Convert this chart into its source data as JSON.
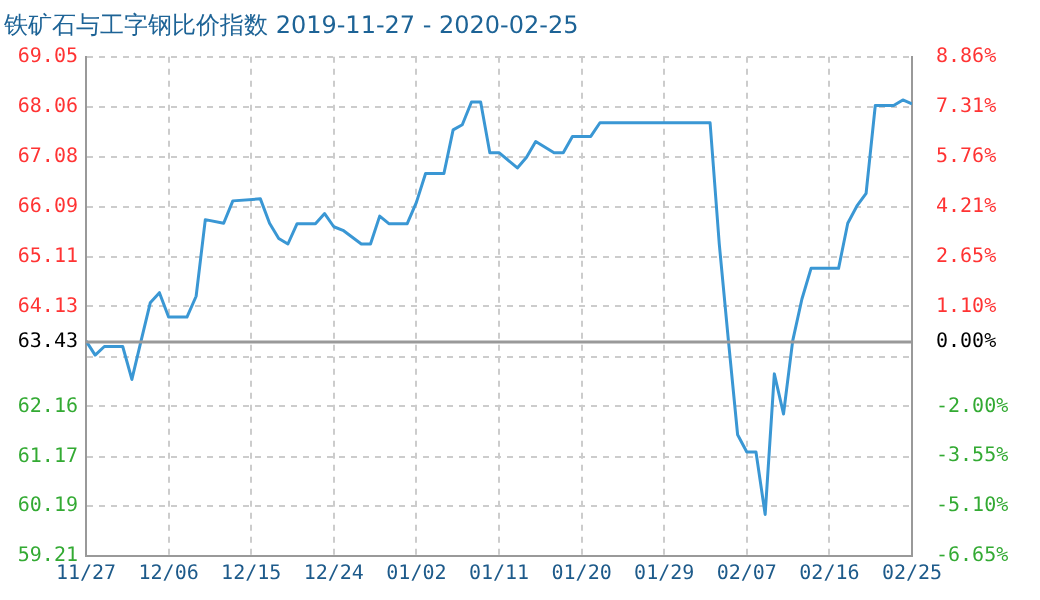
{
  "chart_data": {
    "type": "line",
    "title": "铁矿石与工字钢比价指数 2019-11-27 - 2020-02-25",
    "x": [
      "2019-11-27",
      "2019-11-28",
      "2019-11-29",
      "2019-12-01",
      "2019-12-02",
      "2019-12-03",
      "2019-12-04",
      "2019-12-05",
      "2019-12-06",
      "2019-12-08",
      "2019-12-09",
      "2019-12-10",
      "2019-12-12",
      "2019-12-13",
      "2019-12-16",
      "2019-12-17",
      "2019-12-18",
      "2019-12-19",
      "2019-12-20",
      "2019-12-22",
      "2019-12-23",
      "2019-12-24",
      "2019-12-25",
      "2019-12-27",
      "2019-12-28",
      "2019-12-29",
      "2019-12-30",
      "2020-01-01",
      "2020-01-02",
      "2020-01-03",
      "2020-01-05",
      "2020-01-06",
      "2020-01-07",
      "2020-01-08",
      "2020-01-09",
      "2020-01-10",
      "2020-01-11",
      "2020-01-13",
      "2020-01-14",
      "2020-01-15",
      "2020-01-17",
      "2020-01-18",
      "2020-01-19",
      "2020-01-21",
      "2020-01-22",
      "2020-02-03",
      "2020-02-04",
      "2020-02-05",
      "2020-02-06",
      "2020-02-07",
      "2020-02-08",
      "2020-02-09",
      "2020-02-10",
      "2020-02-11",
      "2020-02-12",
      "2020-02-13",
      "2020-02-14",
      "2020-02-17",
      "2020-02-18",
      "2020-02-19",
      "2020-02-20",
      "2020-02-21",
      "2020-02-23",
      "2020-02-24",
      "2020-02-25"
    ],
    "series": [
      {
        "color": "#3a97d4",
        "values": [
          63.45,
          63.17,
          63.34,
          63.34,
          62.69,
          63.45,
          64.2,
          64.4,
          63.92,
          63.92,
          64.33,
          65.84,
          65.77,
          66.21,
          66.25,
          65.77,
          65.47,
          65.36,
          65.76,
          65.76,
          65.96,
          65.7,
          65.63,
          65.36,
          65.36,
          65.91,
          65.76,
          65.76,
          66.18,
          66.75,
          66.75,
          67.61,
          67.71,
          68.16,
          68.16,
          67.16,
          67.16,
          66.86,
          67.07,
          67.38,
          67.16,
          67.16,
          67.48,
          67.48,
          67.75,
          67.75,
          65.36,
          63.45,
          61.6,
          61.26,
          61.26,
          60.03,
          62.8,
          62.01,
          63.45,
          64.27,
          64.88,
          64.88,
          65.77,
          66.11,
          66.36,
          68.09,
          68.09,
          68.2,
          68.12
        ]
      }
    ],
    "xlim": [
      "2019-11-27",
      "2020-02-25"
    ],
    "xticks": [
      {
        "value": "2019-11-27",
        "label": "11/27"
      },
      {
        "value": "2019-12-06",
        "label": "12/06"
      },
      {
        "value": "2019-12-15",
        "label": "12/15"
      },
      {
        "value": "2019-12-24",
        "label": "12/24"
      },
      {
        "value": "2020-01-02",
        "label": "01/02"
      },
      {
        "value": "2020-01-11",
        "label": "01/11"
      },
      {
        "value": "2020-01-20",
        "label": "01/20"
      },
      {
        "value": "2020-01-29",
        "label": "01/29"
      },
      {
        "value": "2020-02-07",
        "label": "02/07"
      },
      {
        "value": "2020-02-16",
        "label": "02/16"
      },
      {
        "value": "2020-02-25",
        "label": "02/25"
      }
    ],
    "ylim": [
      59.21,
      69.05
    ],
    "yticks": [
      69.05,
      68.06,
      67.08,
      66.09,
      65.11,
      64.13,
      63.43,
      {
        "value": 63.14,
        "label": null
      },
      62.16,
      61.17,
      60.19,
      59.21
    ],
    "y2lim": [
      -6.65,
      8.86
    ],
    "y2ticks": [
      {
        "value": 8.86,
        "label": "8.86%"
      },
      {
        "value": 7.31,
        "label": "7.31%"
      },
      {
        "value": 5.76,
        "label": "5.76%"
      },
      {
        "value": 4.21,
        "label": "4.21%"
      },
      {
        "value": 2.65,
        "label": "2.65%"
      },
      {
        "value": 1.1,
        "label": "1.10%"
      },
      {
        "value": 0,
        "label": "0.00%"
      },
      {
        "value": -2,
        "label": "-2.00%"
      },
      {
        "value": -3.55,
        "label": "-3.55%"
      },
      {
        "value": -5.1,
        "label": "-5.10%"
      },
      {
        "value": -6.65,
        "label": "-6.65%"
      }
    ],
    "ref_lines": [
      {
        "axis": "y",
        "value": 63.43,
        "color": "#999999"
      }
    ],
    "grid": true,
    "legend": false,
    "marker": "none",
    "line_style": "solid"
  }
}
